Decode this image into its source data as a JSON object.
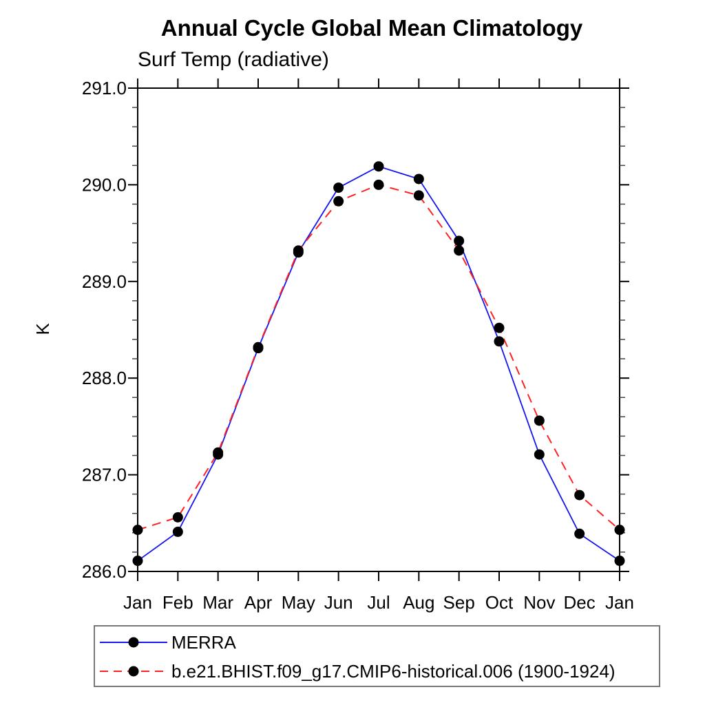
{
  "chart": {
    "title": "Annual Cycle Global Mean Climatology",
    "subtitle": "Surf Temp (radiative)",
    "ylabel": "K"
  },
  "chart_data": {
    "type": "line",
    "x_categories": [
      "Jan",
      "Feb",
      "Mar",
      "Apr",
      "May",
      "Jun",
      "Jul",
      "Aug",
      "Sep",
      "Oct",
      "Nov",
      "Dec",
      "Jan"
    ],
    "title": "Annual Cycle Global Mean Climatology",
    "subtitle": "Surf Temp (radiative)",
    "xlabel": "",
    "ylabel": "K",
    "ylim": [
      286.0,
      291.0
    ],
    "y_major_tick_labels": [
      "286.0",
      "287.0",
      "288.0",
      "289.0",
      "290.0",
      "291.0"
    ],
    "y_major_step": 1.0,
    "y_minor_step": 0.2,
    "grid": false,
    "legend_position": "bottom-left",
    "axis_color": "#000000",
    "marker_color": "#000000",
    "series": [
      {
        "name": "MERRA",
        "color": "#1414f0",
        "style": "solid",
        "marker": "circle",
        "values": [
          286.11,
          286.41,
          287.21,
          288.31,
          289.3,
          289.97,
          290.19,
          290.06,
          289.42,
          288.38,
          287.21,
          286.39,
          286.11
        ]
      },
      {
        "name": "b.e21.BHIST.f09_g17.CMIP6-historical.006 (1900-1924)",
        "color": "#ff2121",
        "style": "dashed",
        "marker": "circle",
        "values": [
          286.43,
          286.56,
          287.23,
          288.32,
          289.32,
          289.83,
          290.0,
          289.89,
          289.32,
          288.52,
          287.56,
          286.79,
          286.43
        ]
      }
    ]
  }
}
